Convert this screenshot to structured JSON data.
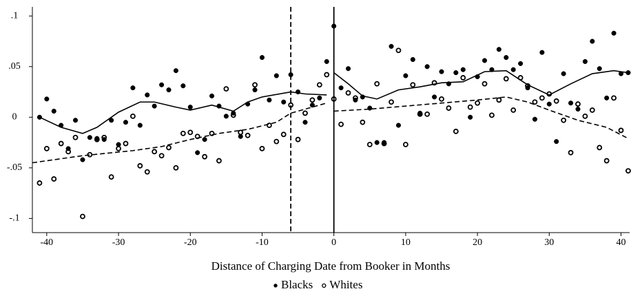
{
  "chart_data": {
    "type": "scatter",
    "xlabel": "Distance of Charging Date from Booker in Months",
    "xlim": [
      -42,
      41.2
    ],
    "ylim": [
      -0.114,
      0.109
    ],
    "xticks": [
      -40,
      -30,
      -20,
      -10,
      0,
      10,
      20,
      30,
      40
    ],
    "yticks": [
      {
        "value": -0.1,
        "label": "-.1"
      },
      {
        "value": -0.05,
        "label": "-.05"
      },
      0,
      {
        "value": 0.05,
        "label": ".05"
      },
      {
        "value": 0.1,
        "label": ".1"
      }
    ],
    "vlines": [
      {
        "value": -6,
        "style": "dashed"
      },
      {
        "value": 0,
        "style": "solid"
      }
    ],
    "series": [
      {
        "name": "Blacks",
        "color": "#000000",
        "marker": "filled",
        "x": [
          -41,
          -40,
          -39,
          -38,
          -37,
          -36,
          -35,
          -34,
          -33,
          -32,
          -31,
          -30,
          -29,
          -28,
          -27,
          -26,
          -25,
          -24,
          -23,
          -22,
          -21,
          -20,
          -19,
          -18,
          -17,
          -16,
          -15,
          -14,
          -13,
          -12,
          -11,
          -10,
          -9,
          -8,
          -7,
          -6,
          -5,
          -4,
          -3,
          -2,
          -1,
          0,
          1,
          2,
          3,
          4,
          5,
          6,
          7,
          8,
          9,
          10,
          11,
          12,
          13,
          14,
          15,
          16,
          17,
          18,
          19,
          20,
          21,
          22,
          23,
          24,
          25,
          26,
          27,
          28,
          29,
          30,
          31,
          32,
          33,
          34,
          35,
          36,
          37,
          38,
          39,
          40,
          41
        ],
        "values": [
          0.0,
          0.018,
          0.006,
          -0.008,
          -0.031,
          -0.003,
          -0.042,
          -0.02,
          -0.021,
          -0.022,
          -0.003,
          -0.027,
          -0.005,
          0.029,
          -0.008,
          0.022,
          0.011,
          0.032,
          0.027,
          0.046,
          0.031,
          0.01,
          -0.035,
          -0.022,
          0.021,
          0.011,
          0.001,
          0.004,
          -0.019,
          0.013,
          0.027,
          0.059,
          0.017,
          0.041,
          0.015,
          0.042,
          0.025,
          -0.005,
          0.012,
          0.019,
          0.055,
          0.09,
          0.029,
          0.048,
          0.017,
          0.02,
          0.009,
          -0.025,
          -0.025,
          0.07,
          -0.008,
          0.041,
          0.057,
          0.004,
          0.05,
          0.02,
          0.045,
          0.033,
          0.044,
          0.047,
          0.0,
          0.04,
          0.056,
          0.047,
          0.067,
          0.059,
          0.047,
          0.053,
          0.029,
          -0.002,
          0.064,
          0.013,
          -0.024,
          0.043,
          0.014,
          0.008,
          0.055,
          0.075,
          0.048,
          0.019,
          0.083,
          0.043,
          0.044
        ]
      },
      {
        "name": "Whites",
        "color": "#000000",
        "marker": "hollow",
        "x": [
          -41,
          -40,
          -39,
          -38,
          -37,
          -36,
          -35,
          -34,
          -33,
          -32,
          -31,
          -30,
          -29,
          -28,
          -27,
          -26,
          -25,
          -24,
          -23,
          -22,
          -21,
          -20,
          -19,
          -18,
          -17,
          -16,
          -15,
          -14,
          -13,
          -12,
          -11,
          -10,
          -9,
          -8,
          -7,
          -6,
          -5,
          -4,
          -3,
          -2,
          -1,
          0,
          1,
          2,
          3,
          4,
          5,
          6,
          7,
          8,
          9,
          10,
          11,
          12,
          13,
          14,
          15,
          16,
          17,
          18,
          19,
          20,
          21,
          22,
          23,
          24,
          25,
          26,
          27,
          28,
          29,
          30,
          31,
          32,
          33,
          34,
          35,
          36,
          37,
          38,
          39,
          40,
          41
        ],
        "values": [
          -0.065,
          -0.031,
          -0.061,
          -0.026,
          -0.034,
          -0.02,
          -0.098,
          -0.037,
          -0.022,
          -0.02,
          -0.059,
          -0.031,
          -0.026,
          0.001,
          -0.048,
          -0.054,
          -0.034,
          -0.038,
          -0.03,
          -0.05,
          -0.016,
          -0.015,
          -0.019,
          -0.039,
          -0.016,
          -0.043,
          0.028,
          0.002,
          -0.015,
          -0.018,
          0.032,
          -0.031,
          -0.008,
          -0.024,
          -0.017,
          0.012,
          -0.022,
          0.004,
          0.017,
          0.032,
          0.042,
          0.018,
          -0.007,
          0.024,
          0.019,
          -0.005,
          -0.027,
          0.033,
          -0.026,
          0.015,
          0.066,
          -0.027,
          0.032,
          0.003,
          0.003,
          0.034,
          0.018,
          0.009,
          -0.014,
          0.039,
          0.01,
          0.014,
          0.033,
          0.002,
          0.017,
          0.038,
          0.007,
          0.039,
          0.031,
          0.015,
          0.019,
          0.023,
          0.016,
          -0.003,
          -0.035,
          0.013,
          0.001,
          0.007,
          -0.03,
          -0.043,
          0.019,
          -0.013,
          -0.053
        ]
      }
    ],
    "fits": [
      {
        "style": "solid",
        "x": [
          -41,
          -38,
          -35,
          -33,
          -30,
          -27,
          -25,
          -22,
          -20,
          -17,
          -14,
          -12,
          -10,
          -6,
          -4,
          -1
        ],
        "values": [
          0.0,
          -0.01,
          -0.016,
          -0.01,
          0.005,
          0.015,
          0.015,
          0.01,
          0.007,
          0.012,
          0.006,
          0.015,
          0.02,
          0.025,
          0.023,
          0.022
        ]
      },
      {
        "style": "solid",
        "x": [
          0,
          2,
          4,
          6,
          9,
          12,
          15,
          18,
          21,
          24,
          27,
          30,
          33,
          36,
          39,
          41
        ],
        "values": [
          0.044,
          0.033,
          0.021,
          0.018,
          0.027,
          0.03,
          0.034,
          0.035,
          0.045,
          0.046,
          0.032,
          0.022,
          0.033,
          0.043,
          0.046,
          0.044
        ]
      },
      {
        "style": "dashed",
        "x": [
          -42,
          -35,
          -28,
          -24,
          -20,
          -16,
          -12,
          -8,
          -6,
          -3,
          -1
        ],
        "values": [
          -0.045,
          -0.038,
          -0.033,
          -0.029,
          -0.022,
          -0.016,
          -0.012,
          -0.005,
          0.004,
          0.01,
          0.014
        ]
      },
      {
        "style": "dashed",
        "x": [
          0,
          5,
          10,
          15,
          20,
          24,
          27,
          30,
          34,
          38,
          41
        ],
        "values": [
          0.006,
          0.008,
          0.011,
          0.014,
          0.017,
          0.02,
          0.015,
          0.007,
          -0.003,
          -0.01,
          -0.021
        ]
      }
    ]
  }
}
